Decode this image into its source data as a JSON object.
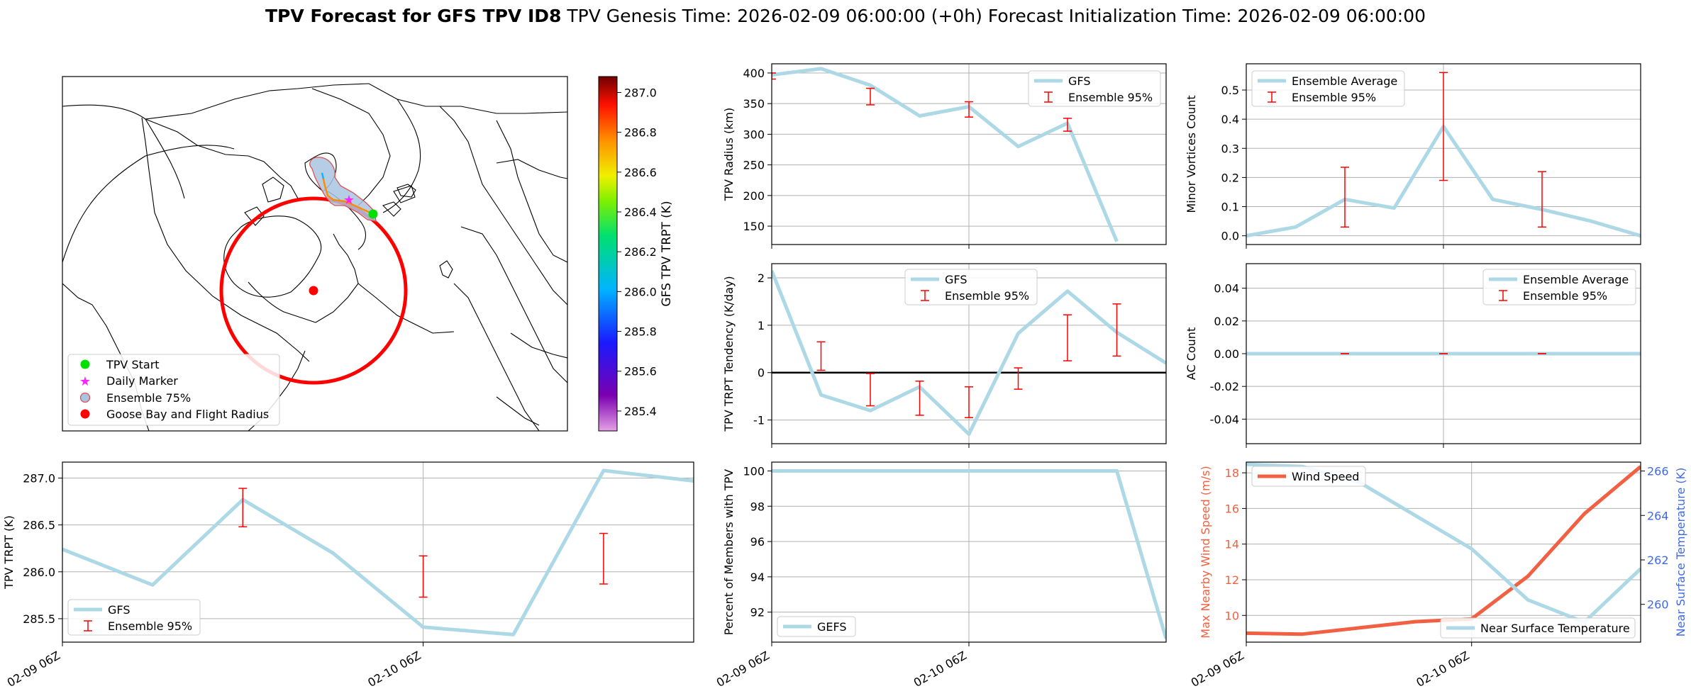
{
  "figure": {
    "title_bold": "TPV Forecast for GFS TPV ID8",
    "title_rest": "TPV Genesis Time: 2026-02-09 06:00:00 (+0h)   Forecast Initialization Time: 2026-02-09 06:00:00"
  },
  "map": {
    "colorbar": {
      "label": "GFS TPV TRPT (K)",
      "ticks": [
        "287.0",
        "286.8",
        "286.6",
        "286.4",
        "286.2",
        "286.0",
        "285.8",
        "285.6",
        "285.4"
      ],
      "range": [
        285.3,
        287.08
      ]
    },
    "legend": [
      "TPV Start",
      "Daily Marker",
      "Ensemble 75%",
      "Goose Bay and Flight Radius"
    ],
    "colors": {
      "start": "#00e000",
      "daily": "#ff22ff",
      "ensemble_fill": "#a8c4e0",
      "ensemble_edge": "#e05050",
      "goosebay": "#ff0000",
      "radius": "#ff0000"
    }
  },
  "colors": {
    "gfs": "#add8e6",
    "error": "#ff0000",
    "wind": "#f26043",
    "temp_axis": "#4169e1",
    "zero_line": "#000000"
  },
  "chart_data": [
    {
      "id": "radius",
      "type": "line",
      "title": "",
      "xlabel": "",
      "ylabel": "TPV Radius (km)",
      "xlim": [
        0,
        24
      ],
      "ylim": [
        120,
        415
      ],
      "yticks": [
        150,
        200,
        250,
        300,
        350,
        400
      ],
      "grid": true,
      "series": [
        {
          "name": "GFS",
          "x": [
            0,
            3,
            6,
            9,
            12,
            15,
            18,
            21
          ],
          "values": [
            397,
            407,
            380,
            330,
            345,
            280,
            318,
            125
          ]
        }
      ],
      "errorbars": {
        "name": "Ensemble 95%",
        "x": [
          0,
          6,
          12,
          18
        ],
        "low": [
          390,
          348,
          328,
          305
        ],
        "high": [
          400,
          375,
          353,
          326
        ]
      },
      "legend": "top-right"
    },
    {
      "id": "minor",
      "type": "line",
      "title": "",
      "xlabel": "",
      "ylabel": "Minor Vortices Count",
      "xlim": [
        0,
        24
      ],
      "ylim": [
        -0.03,
        0.59
      ],
      "yticks": [
        0.0,
        0.1,
        0.2,
        0.3,
        0.4,
        0.5
      ],
      "grid": true,
      "series": [
        {
          "name": "Ensemble Average",
          "x": [
            0,
            3,
            6,
            9,
            12,
            15,
            18,
            21,
            24
          ],
          "values": [
            0,
            0.03,
            0.125,
            0.095,
            0.375,
            0.125,
            0.09,
            0.05,
            0.0
          ]
        }
      ],
      "errorbars": {
        "name": "Ensemble 95%",
        "x": [
          6,
          12,
          18
        ],
        "low": [
          0.03,
          0.19,
          0.03
        ],
        "high": [
          0.235,
          0.56,
          0.22
        ]
      },
      "legend": "top-left"
    },
    {
      "id": "tendency",
      "type": "line",
      "title": "",
      "xlabel": "",
      "ylabel": "TPV TRPT Tendency (K/day)",
      "xlim": [
        0,
        24
      ],
      "ylim": [
        -1.5,
        2.3
      ],
      "yticks": [
        -1,
        0,
        1,
        2
      ],
      "grid": true,
      "zero_line": 0,
      "series": [
        {
          "name": "GFS",
          "x": [
            0,
            3,
            6,
            9,
            12,
            15,
            18,
            21,
            24
          ],
          "values": [
            2.15,
            -0.47,
            -0.8,
            -0.3,
            -1.3,
            0.83,
            1.72,
            0.85,
            0.2
          ]
        }
      ],
      "errorbars": {
        "name": "Ensemble 95%",
        "x": [
          3,
          6,
          9,
          12,
          15,
          18,
          21
        ],
        "low": [
          0.05,
          -0.7,
          -0.9,
          -0.95,
          -0.35,
          0.25,
          0.35
        ],
        "high": [
          0.65,
          -0.02,
          -0.18,
          -0.3,
          0.1,
          1.22,
          1.45
        ]
      },
      "legend": "top-center"
    },
    {
      "id": "ac",
      "type": "line",
      "title": "",
      "xlabel": "",
      "ylabel": "AC Count",
      "xlim": [
        0,
        24
      ],
      "ylim": [
        -0.055,
        0.055
      ],
      "yticks": [
        -0.04,
        -0.02,
        0.0,
        0.02,
        0.04
      ],
      "grid": true,
      "series": [
        {
          "name": "Ensemble Average",
          "x": [
            0,
            24
          ],
          "values": [
            0,
            0
          ]
        }
      ],
      "errorbars": {
        "name": "Ensemble 95%",
        "x": [
          6,
          12,
          18
        ],
        "low": [
          0,
          0,
          0
        ],
        "high": [
          0,
          0,
          0
        ]
      },
      "legend": "top-right"
    },
    {
      "id": "trpt",
      "type": "line",
      "title": "",
      "xlabel": "",
      "ylabel": "TPV TRPT (K)",
      "xlim": [
        0,
        21
      ],
      "ylim": [
        285.25,
        287.17
      ],
      "yticks": [
        285.5,
        286.0,
        286.5,
        287.0
      ],
      "grid": true,
      "xticks": [
        {
          "x": 0,
          "label": "02-09 06Z"
        },
        {
          "x": 12,
          "label": "02-10 06Z"
        }
      ],
      "series": [
        {
          "name": "GFS",
          "x": [
            0,
            3,
            6,
            9,
            12,
            15,
            18,
            21
          ],
          "values": [
            286.24,
            285.86,
            286.77,
            286.2,
            285.41,
            285.33,
            287.08,
            286.97
          ]
        }
      ],
      "errorbars": {
        "name": "Ensemble 95%",
        "x": [
          6,
          12,
          18
        ],
        "low": [
          286.48,
          285.73,
          285.87
        ],
        "high": [
          286.89,
          286.17,
          286.41
        ]
      },
      "legend": "bottom-left"
    },
    {
      "id": "members",
      "type": "line",
      "title": "",
      "xlabel": "",
      "ylabel": "Percent of Members with TPV",
      "xlim": [
        0,
        24
      ],
      "ylim": [
        90.3,
        100.5
      ],
      "yticks": [
        92,
        94,
        96,
        98,
        100
      ],
      "grid": true,
      "xticks": [
        {
          "x": 0,
          "label": "02-09 06Z"
        },
        {
          "x": 12,
          "label": "02-10 06Z"
        }
      ],
      "series": [
        {
          "name": "GEFS",
          "x": [
            0,
            3,
            6,
            9,
            12,
            15,
            18,
            21,
            24
          ],
          "values": [
            100,
            100,
            100,
            100,
            100,
            100,
            100,
            100,
            90.5
          ]
        }
      ],
      "legend": "bottom-left"
    },
    {
      "id": "wind",
      "type": "line",
      "title": "",
      "xlabel": "",
      "ylabel": "Max Nearby Wind Speed (m/s)",
      "ylabel_right": "Near Surface Temperature (K)",
      "xlim": [
        0,
        21
      ],
      "ylim": [
        8.5,
        18.6
      ],
      "ylim_right": [
        258.3,
        266.4
      ],
      "yticks": [
        10,
        12,
        14,
        16,
        18
      ],
      "yticks_right": [
        260,
        262,
        264,
        266
      ],
      "grid": true,
      "xticks": [
        {
          "x": 0,
          "label": "02-09 06Z"
        },
        {
          "x": 12,
          "label": "02-10 06Z"
        }
      ],
      "series": [
        {
          "name": "Wind Speed",
          "axis": "left",
          "x": [
            0,
            3,
            6,
            9,
            12,
            15,
            18,
            21
          ],
          "values": [
            9.0,
            8.95,
            9.3,
            9.65,
            9.8,
            12.2,
            15.7,
            18.35
          ]
        },
        {
          "name": "Near Surface Temperature",
          "axis": "right",
          "x": [
            0,
            3,
            6,
            9,
            12,
            15,
            18,
            21
          ],
          "values": [
            266.3,
            266.2,
            265.5,
            264.0,
            262.5,
            260.2,
            259.2,
            261.6
          ]
        }
      ],
      "legend": "top-left / bottom-right"
    }
  ]
}
